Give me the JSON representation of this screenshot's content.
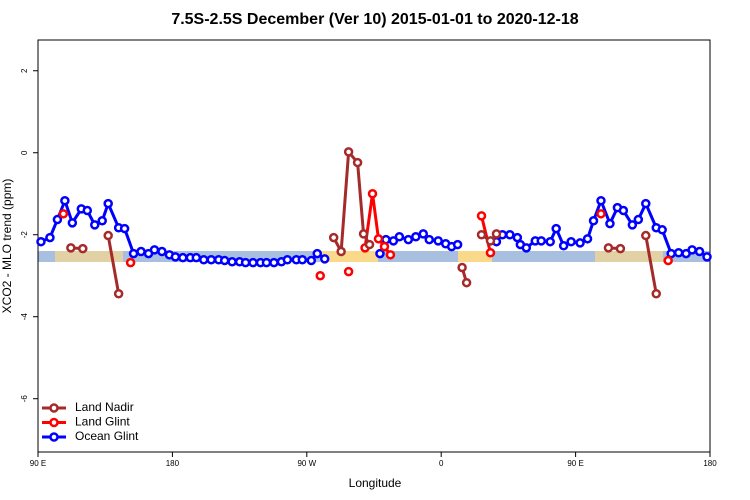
{
  "chart_data": {
    "type": "line",
    "title": "7.5S-2.5S December (Ver 10)   2015-01-01 to 2020-12-18",
    "x_label": "Longitude",
    "y_label": "XCO2 - MLO trend (ppm)",
    "xlim": [
      90,
      540
    ],
    "ylim": [
      -7.3,
      2.75
    ],
    "xticks": [
      {
        "value": 90,
        "label": "90 E"
      },
      180,
      {
        "value": 270,
        "label": "90 W"
      },
      {
        "value": 360,
        "label": "0"
      },
      {
        "value": 450,
        "label": "90 E"
      },
      {
        "value": 540,
        "label": "180"
      }
    ],
    "yticks": [
      2,
      0,
      -2,
      -4,
      -6
    ],
    "legend": "bottom-left",
    "series": [
      {
        "name": "Land Nadir",
        "color": "#a52a2a",
        "x": [
          112,
          120,
          null,
          137,
          144,
          null,
          288,
          293,
          298,
          304,
          308,
          312,
          null,
          374,
          377,
          null,
          387,
          393,
          397,
          null,
          472,
          480,
          null,
          497,
          504
        ],
        "values": [
          -2.32,
          -2.34,
          null,
          -2.02,
          -3.44,
          null,
          -2.07,
          -2.41,
          0.02,
          -0.24,
          -1.98,
          -2.24,
          null,
          -2.8,
          -3.17,
          null,
          -2.0,
          -2.15,
          -1.98,
          null,
          -2.32,
          -2.34,
          null,
          -2.02,
          -3.44
        ]
      },
      {
        "name": "Land Glint",
        "color": "#ff0000",
        "x": [
          107,
          null,
          152,
          null,
          279,
          null,
          298,
          null,
          309,
          314,
          318,
          322,
          326,
          null,
          387,
          393,
          null,
          467,
          null,
          512
        ],
        "values": [
          -1.49,
          null,
          -2.68,
          null,
          -3.0,
          null,
          -2.9,
          null,
          -2.32,
          -1.0,
          -2.1,
          -2.29,
          -2.49,
          null,
          -1.54,
          -2.44,
          null,
          -1.49,
          null,
          -2.63
        ]
      },
      {
        "name": "Ocean Glint",
        "color": "#0000ff",
        "x": [
          92,
          98,
          103,
          108,
          113,
          119,
          123,
          128,
          133,
          137,
          144,
          148,
          154,
          159,
          164,
          168,
          173,
          178,
          182,
          187,
          192,
          196,
          201,
          206,
          211,
          215,
          220,
          225,
          229,
          234,
          239,
          243,
          248,
          253,
          257,
          263,
          267,
          273,
          277,
          282,
          null,
          319,
          323,
          328,
          332,
          338,
          343,
          348,
          352,
          358,
          363,
          367,
          371,
          null,
          397,
          401,
          406,
          411,
          413,
          417,
          423,
          427,
          433,
          437,
          442,
          447,
          453,
          458,
          462,
          467,
          473,
          478,
          482,
          488,
          492,
          497,
          504,
          508,
          514,
          519,
          524,
          528,
          533,
          538
        ],
        "values": [
          -2.17,
          -2.07,
          -1.63,
          -1.17,
          -1.71,
          -1.37,
          -1.41,
          -1.76,
          -1.66,
          -1.24,
          -1.83,
          -1.85,
          -2.46,
          -2.41,
          -2.46,
          -2.37,
          -2.41,
          -2.49,
          -2.54,
          -2.56,
          -2.56,
          -2.56,
          -2.61,
          -2.61,
          -2.61,
          -2.63,
          -2.66,
          -2.66,
          -2.68,
          -2.68,
          -2.68,
          -2.68,
          -2.68,
          -2.66,
          -2.61,
          -2.61,
          -2.61,
          -2.63,
          -2.46,
          -2.59,
          null,
          -2.46,
          -2.12,
          -2.15,
          -2.05,
          -2.12,
          -2.05,
          -1.98,
          -2.12,
          -2.15,
          -2.22,
          -2.29,
          -2.24,
          null,
          -2.17,
          -2.0,
          -2.0,
          -2.07,
          -2.24,
          -2.32,
          -2.15,
          -2.15,
          -2.17,
          -1.85,
          -2.27,
          -2.17,
          -2.2,
          -2.1,
          -1.66,
          -1.17,
          -1.73,
          -1.34,
          -1.41,
          -1.76,
          -1.63,
          -1.24,
          -1.83,
          -1.88,
          -2.46,
          -2.44,
          -2.46,
          -2.37,
          -2.41,
          -2.54
        ]
      }
    ]
  }
}
